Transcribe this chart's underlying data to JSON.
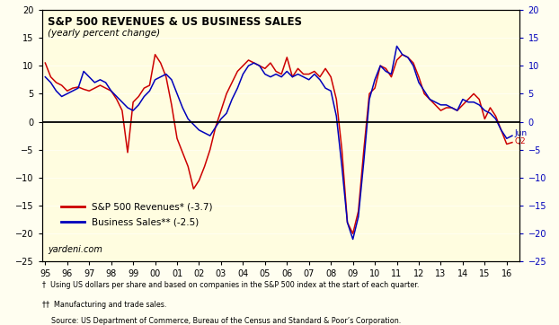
{
  "title_line1": "S&P 500 REVENUES & US BUSINESS SALES",
  "title_line2": "(yearly percent change)",
  "background_color": "#FFFEF0",
  "plot_bg_color": "#FFFDE0",
  "ylim": [
    -25,
    20
  ],
  "yticks": [
    -25,
    -20,
    -15,
    -10,
    -5,
    0,
    5,
    10,
    15,
    20
  ],
  "watermark": "yardeni.com",
  "footnote1": "†  Using US dollars per share and based on companies in the S&P 500 index at the start of each quarter.",
  "footnote2": "††  Manufacturing and trade sales.",
  "footnote3": "    Source: US Department of Commerce, Bureau of the Census and Standard & Poor’s Corporation.",
  "legend_red": "S&P 500 Revenues* (-3.7)",
  "legend_blue": "Business Sales** (-2.5)",
  "ann_jun": "Jun",
  "ann_q2": "Q2",
  "sp500_color": "#CC0000",
  "biz_color": "#0000BB",
  "sp500_x": [
    1995.0,
    1995.25,
    1995.5,
    1995.75,
    1996.0,
    1996.25,
    1996.5,
    1996.75,
    1997.0,
    1997.25,
    1997.5,
    1997.75,
    1998.0,
    1998.25,
    1998.5,
    1998.75,
    1999.0,
    1999.25,
    1999.5,
    1999.75,
    2000.0,
    2000.25,
    2000.5,
    2000.75,
    2001.0,
    2001.25,
    2001.5,
    2001.75,
    2002.0,
    2002.25,
    2002.5,
    2002.75,
    2003.0,
    2003.25,
    2003.5,
    2003.75,
    2004.0,
    2004.25,
    2004.5,
    2004.75,
    2005.0,
    2005.25,
    2005.5,
    2005.75,
    2006.0,
    2006.25,
    2006.5,
    2006.75,
    2007.0,
    2007.25,
    2007.5,
    2007.75,
    2008.0,
    2008.25,
    2008.5,
    2008.75,
    2009.0,
    2009.25,
    2009.5,
    2009.75,
    2010.0,
    2010.25,
    2010.5,
    2010.75,
    2011.0,
    2011.25,
    2011.5,
    2011.75,
    2012.0,
    2012.25,
    2012.5,
    2012.75,
    2013.0,
    2013.25,
    2013.5,
    2013.75,
    2014.0,
    2014.25,
    2014.5,
    2014.75,
    2015.0,
    2015.25,
    2015.5,
    2015.75,
    2016.0,
    2016.25
  ],
  "sp500_y": [
    10.5,
    8.0,
    7.0,
    6.5,
    5.5,
    6.0,
    6.2,
    5.8,
    5.5,
    6.0,
    6.5,
    6.0,
    5.5,
    4.0,
    2.0,
    -5.5,
    3.5,
    4.5,
    6.0,
    6.5,
    12.0,
    10.5,
    8.0,
    3.0,
    -3.0,
    -5.5,
    -8.0,
    -12.0,
    -10.5,
    -8.0,
    -5.0,
    -1.0,
    2.0,
    5.0,
    7.0,
    9.0,
    10.0,
    11.0,
    10.5,
    10.0,
    9.5,
    10.5,
    9.0,
    8.5,
    11.5,
    8.0,
    9.5,
    8.5,
    8.5,
    9.0,
    8.0,
    9.5,
    8.0,
    4.0,
    -5.0,
    -18.0,
    -20.0,
    -16.0,
    -5.0,
    5.0,
    6.0,
    10.0,
    9.5,
    8.0,
    11.0,
    12.0,
    11.5,
    10.5,
    8.0,
    5.0,
    4.0,
    3.0,
    2.0,
    2.5,
    2.5,
    2.0,
    3.0,
    4.0,
    5.0,
    4.0,
    0.5,
    2.5,
    1.0,
    -1.5,
    -4.0,
    -3.7
  ],
  "biz_x": [
    1995.0,
    1995.25,
    1995.5,
    1995.75,
    1996.0,
    1996.25,
    1996.5,
    1996.75,
    1997.0,
    1997.25,
    1997.5,
    1997.75,
    1998.0,
    1998.25,
    1998.5,
    1998.75,
    1999.0,
    1999.25,
    1999.5,
    1999.75,
    2000.0,
    2000.25,
    2000.5,
    2000.75,
    2001.0,
    2001.25,
    2001.5,
    2001.75,
    2002.0,
    2002.25,
    2002.5,
    2002.75,
    2003.0,
    2003.25,
    2003.5,
    2003.75,
    2004.0,
    2004.25,
    2004.5,
    2004.75,
    2005.0,
    2005.25,
    2005.5,
    2005.75,
    2006.0,
    2006.25,
    2006.5,
    2006.75,
    2007.0,
    2007.25,
    2007.5,
    2007.75,
    2008.0,
    2008.25,
    2008.5,
    2008.75,
    2009.0,
    2009.25,
    2009.5,
    2009.75,
    2010.0,
    2010.25,
    2010.5,
    2010.75,
    2011.0,
    2011.25,
    2011.5,
    2011.75,
    2012.0,
    2012.25,
    2012.5,
    2012.75,
    2013.0,
    2013.25,
    2013.5,
    2013.75,
    2014.0,
    2014.25,
    2014.5,
    2014.75,
    2015.0,
    2015.25,
    2015.5,
    2015.75,
    2016.0,
    2016.25
  ],
  "biz_y": [
    8.0,
    7.0,
    5.5,
    4.5,
    5.0,
    5.5,
    6.0,
    9.0,
    8.0,
    7.0,
    7.5,
    7.0,
    5.5,
    4.5,
    3.5,
    2.5,
    2.0,
    3.0,
    4.5,
    5.5,
    7.5,
    8.0,
    8.5,
    7.5,
    5.0,
    2.5,
    0.5,
    -0.5,
    -1.5,
    -2.0,
    -2.5,
    -1.0,
    0.5,
    1.5,
    4.0,
    6.0,
    8.5,
    10.0,
    10.5,
    10.0,
    8.5,
    8.0,
    8.5,
    8.0,
    9.0,
    8.0,
    8.5,
    8.0,
    7.5,
    8.5,
    7.5,
    6.0,
    5.5,
    1.0,
    -8.0,
    -18.0,
    -21.0,
    -17.0,
    -7.0,
    4.0,
    7.5,
    10.0,
    9.0,
    8.5,
    13.5,
    12.0,
    11.5,
    10.0,
    7.0,
    5.5,
    4.0,
    3.5,
    3.0,
    3.0,
    2.5,
    2.0,
    4.0,
    3.5,
    3.5,
    3.0,
    2.0,
    1.5,
    0.5,
    -1.5,
    -3.0,
    -2.5
  ],
  "xtick_positions": [
    1995,
    1996,
    1997,
    1998,
    1999,
    2000,
    2001,
    2002,
    2003,
    2004,
    2005,
    2006,
    2007,
    2008,
    2009,
    2010,
    2011,
    2012,
    2013,
    2014,
    2015,
    2016
  ],
  "xtick_labels": [
    "95",
    "96",
    "97",
    "98",
    "99",
    "00",
    "01",
    "02",
    "03",
    "04",
    "05",
    "06",
    "07",
    "08",
    "09",
    "10",
    "11",
    "12",
    "13",
    "14",
    "15",
    "16"
  ]
}
